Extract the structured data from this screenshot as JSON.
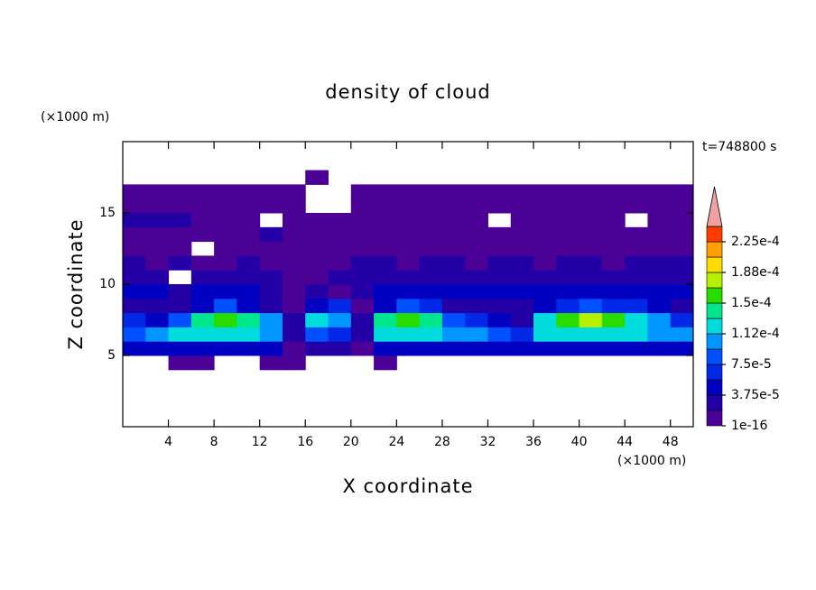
{
  "chart_data": {
    "type": "contour",
    "title": "density of cloud",
    "x_label": "X coordinate",
    "y_label": "Z coordinate",
    "x_unit": "(×1000 m)",
    "y_unit": "(×1000 m)",
    "annotation": "t=748800 s",
    "xlim": [
      0,
      50
    ],
    "ylim": [
      0,
      20
    ],
    "xticks": [
      4,
      8,
      12,
      16,
      20,
      24,
      28,
      32,
      36,
      40,
      44,
      48
    ],
    "yticks": [
      5,
      10,
      15
    ],
    "x": [
      1,
      3,
      5,
      7,
      9,
      11,
      13,
      15,
      17,
      19,
      21,
      23,
      25,
      27,
      29,
      31,
      33,
      35,
      37,
      39,
      41,
      43,
      45,
      47,
      49
    ],
    "y": [
      4.5,
      5.5,
      6.5,
      7.5,
      8.5,
      9.5,
      10.5,
      11.5,
      12.5,
      13.5,
      14.5,
      15.5,
      16.5,
      17.5
    ],
    "z": [
      [
        null,
        null,
        1e-05,
        1e-05,
        null,
        null,
        1e-05,
        1e-05,
        null,
        null,
        null,
        1e-05,
        null,
        null,
        null,
        null,
        null,
        null,
        null,
        null,
        null,
        null,
        null,
        null,
        null
      ],
      [
        4.5e-05,
        4.5e-05,
        4.5e-05,
        4.5e-05,
        4.5e-05,
        4.5e-05,
        4.5e-05,
        1e-05,
        2.5e-05,
        2.5e-05,
        1e-05,
        4.5e-05,
        4.5e-05,
        4.5e-05,
        4.5e-05,
        4.5e-05,
        4.5e-05,
        4.5e-05,
        4.5e-05,
        4.5e-05,
        4.5e-05,
        4.5e-05,
        4.5e-05,
        4.5e-05,
        4.5e-05
      ],
      [
        8.5e-05,
        0.0001,
        0.00012,
        0.00012,
        0.00012,
        0.00012,
        0.0001,
        2.5e-05,
        8.5e-05,
        6.5e-05,
        2.5e-05,
        0.00012,
        0.00012,
        0.00012,
        0.0001,
        0.0001,
        8.5e-05,
        6.5e-05,
        0.00012,
        0.00012,
        0.00012,
        0.00012,
        0.00012,
        0.0001,
        0.0001
      ],
      [
        6.5e-05,
        4.5e-05,
        8.5e-05,
        0.00014,
        0.00016,
        0.00014,
        0.0001,
        2.5e-05,
        0.00012,
        0.0001,
        2.5e-05,
        0.00014,
        0.00016,
        0.00014,
        8.5e-05,
        6.5e-05,
        4.5e-05,
        2.5e-05,
        0.00012,
        0.00016,
        0.00018,
        0.00016,
        0.00012,
        0.0001,
        6.5e-05
      ],
      [
        2.5e-05,
        2.5e-05,
        2.5e-05,
        4.5e-05,
        8.5e-05,
        4.5e-05,
        2.5e-05,
        1e-05,
        4.5e-05,
        6.5e-05,
        1e-05,
        4.5e-05,
        8.5e-05,
        6.5e-05,
        2.5e-05,
        2.5e-05,
        2.5e-05,
        2.5e-05,
        4.5e-05,
        6.5e-05,
        8.5e-05,
        6.5e-05,
        6.5e-05,
        4.5e-05,
        2.5e-05
      ],
      [
        4.5e-05,
        4.5e-05,
        2.5e-05,
        4.5e-05,
        4.5e-05,
        4.5e-05,
        2.5e-05,
        1e-05,
        2.5e-05,
        1e-05,
        2.5e-05,
        4.5e-05,
        4.5e-05,
        4.5e-05,
        4.5e-05,
        4.5e-05,
        4.5e-05,
        4.5e-05,
        4.5e-05,
        4.5e-05,
        4.5e-05,
        4.5e-05,
        4.5e-05,
        4.5e-05,
        4.5e-05
      ],
      [
        2.5e-05,
        2.5e-05,
        null,
        2.5e-05,
        2.5e-05,
        2.5e-05,
        2.5e-05,
        1e-05,
        1e-05,
        2.5e-05,
        2.5e-05,
        2.5e-05,
        2.5e-05,
        2.5e-05,
        2.5e-05,
        2.5e-05,
        2.5e-05,
        2.5e-05,
        2.5e-05,
        2.5e-05,
        2.5e-05,
        2.5e-05,
        2.5e-05,
        2.5e-05,
        2.5e-05
      ],
      [
        2.5e-05,
        1e-05,
        2.5e-05,
        1e-05,
        1e-05,
        2.5e-05,
        1e-05,
        1e-05,
        1e-05,
        1e-05,
        2.5e-05,
        2.5e-05,
        1e-05,
        2.5e-05,
        2.5e-05,
        1e-05,
        2.5e-05,
        2.5e-05,
        1e-05,
        2.5e-05,
        2.5e-05,
        1e-05,
        2.5e-05,
        2.5e-05,
        2.5e-05
      ],
      [
        1e-05,
        1e-05,
        1e-05,
        null,
        1e-05,
        1e-05,
        1e-05,
        1e-05,
        1e-05,
        1e-05,
        1e-05,
        1e-05,
        1e-05,
        1e-05,
        1e-05,
        1e-05,
        1e-05,
        1e-05,
        1e-05,
        1e-05,
        1e-05,
        1e-05,
        1e-05,
        1e-05,
        1e-05
      ],
      [
        1e-05,
        1e-05,
        1e-05,
        1e-05,
        1e-05,
        1e-05,
        2.5e-05,
        1e-05,
        1e-05,
        1e-05,
        1e-05,
        1e-05,
        1e-05,
        1e-05,
        1e-05,
        1e-05,
        1e-05,
        1e-05,
        1e-05,
        1e-05,
        1e-05,
        1e-05,
        1e-05,
        1e-05,
        1e-05
      ],
      [
        2.5e-05,
        2.5e-05,
        2.5e-05,
        1e-05,
        1e-05,
        1e-05,
        null,
        1e-05,
        1e-05,
        1e-05,
        1e-05,
        1e-05,
        1e-05,
        1e-05,
        1e-05,
        1e-05,
        null,
        1e-05,
        1e-05,
        1e-05,
        1e-05,
        1e-05,
        null,
        1e-05,
        1e-05
      ],
      [
        1e-05,
        1e-05,
        1e-05,
        1e-05,
        1e-05,
        1e-05,
        1e-05,
        1e-05,
        null,
        null,
        1e-05,
        1e-05,
        1e-05,
        1e-05,
        1e-05,
        1e-05,
        1e-05,
        1e-05,
        1e-05,
        1e-05,
        1e-05,
        1e-05,
        1e-05,
        1e-05,
        1e-05
      ],
      [
        1e-05,
        1e-05,
        1e-05,
        1e-05,
        1e-05,
        1e-05,
        1e-05,
        1e-05,
        null,
        null,
        1e-05,
        1e-05,
        1e-05,
        1e-05,
        1e-05,
        1e-05,
        1e-05,
        1e-05,
        1e-05,
        1e-05,
        1e-05,
        1e-05,
        1e-05,
        1e-05,
        1e-05
      ],
      [
        null,
        null,
        null,
        null,
        null,
        null,
        null,
        null,
        1e-05,
        null,
        null,
        null,
        null,
        null,
        null,
        null,
        null,
        null,
        null,
        null,
        null,
        null,
        null,
        null,
        null
      ]
    ],
    "levels": [
      {
        "value": 1e-16,
        "label": "1e-16"
      },
      1.875e-05,
      {
        "value": 3.75e-05,
        "label": "3.75e-5"
      },
      5.625e-05,
      {
        "value": 7.5e-05,
        "label": "7.5e-5"
      },
      9.375e-05,
      {
        "value": 0.0001125,
        "label": "1.12e-4"
      },
      0.00013125,
      {
        "value": 0.00015,
        "label": "1.5e-4"
      },
      0.00016875,
      {
        "value": 0.0001875,
        "label": "1.88e-4"
      },
      0.00020625,
      {
        "value": 0.000225,
        "label": "2.25e-4"
      },
      0.00024375
    ],
    "colors": [
      "#4b0096",
      "#2200a6",
      "#0000c0",
      "#0028e6",
      "#0050ff",
      "#0096ff",
      "#00dcdc",
      "#00e68c",
      "#28dc00",
      "#b4f000",
      "#ffdc00",
      "#ffa000",
      "#ff3c00"
    ],
    "extend_color": "#f0a0a0"
  }
}
